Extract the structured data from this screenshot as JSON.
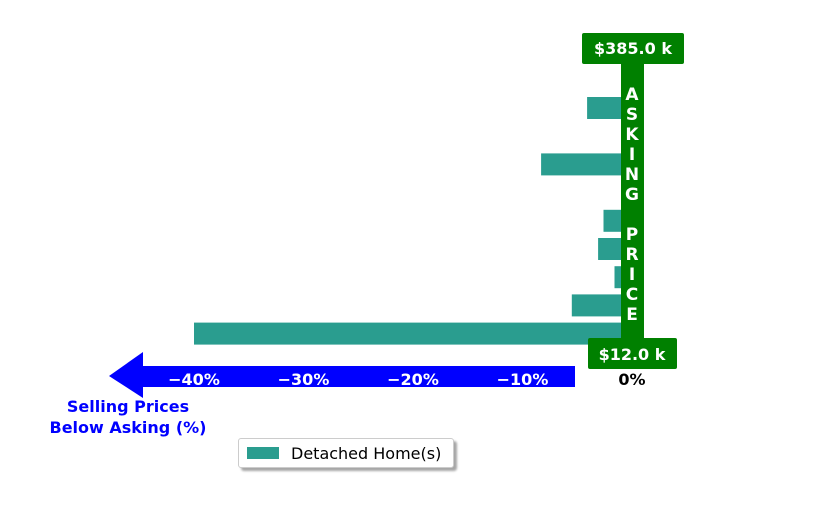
{
  "chart_data": {
    "type": "bar",
    "orientation": "horizontal",
    "series": [
      {
        "name": "Detached Home(s)",
        "values": [
          -40.0,
          -5.5,
          -1.6,
          -3.1,
          -2.6,
          -8.3,
          -4.1
        ]
      }
    ],
    "xlim": [
      -47,
      2
    ],
    "xticks": [
      -40,
      -30,
      -20,
      -10,
      0
    ],
    "xtick_labels": [
      "−40%",
      "−30%",
      "−20%",
      "−10%",
      "0%"
    ],
    "xlabel_lines": [
      "Selling Prices",
      "Below Asking (%)"
    ],
    "asking_price_label": "A S K I N G   P R I C E",
    "top_price": "$385.0 k",
    "bottom_price": "$12.0 k",
    "legend_position": "bottom-center",
    "grid": false,
    "colors": {
      "bar": "#2a9d8f",
      "asking_line": "#008000",
      "axis_arrow": "#0000ff",
      "xlabel": "#0000ff",
      "tick_label": "#ffffff",
      "zero_label": "#000000"
    }
  }
}
